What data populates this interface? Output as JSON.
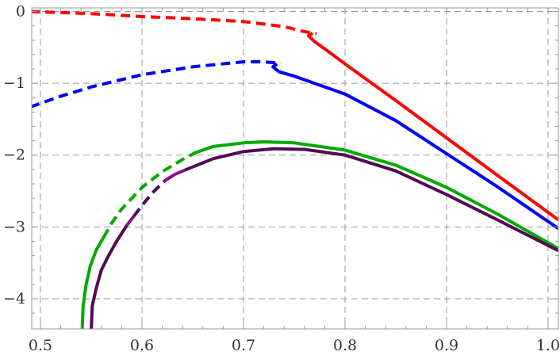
{
  "chart_data": {
    "type": "line",
    "title": "",
    "xlabel": "",
    "ylabel": "",
    "xlim": [
      0.4914,
      1.0102
    ],
    "ylim": [
      -4.42,
      0.05
    ],
    "grid": true,
    "grid_style": "dashed",
    "x_ticks": [
      "0.5",
      "0.6",
      "0.7",
      "0.8",
      "0.9",
      "1.0"
    ],
    "x_tick_values": [
      0.5,
      0.6,
      0.7,
      0.8,
      0.9,
      1.0
    ],
    "y_ticks": [
      "0",
      "−1",
      "−2",
      "−3",
      "−4"
    ],
    "y_tick_values": [
      0,
      -1,
      -2,
      -3,
      -4
    ],
    "series": [
      {
        "color": "#ff0000",
        "segments": [
          {
            "style": "dashed",
            "points": [
              [
                0.49,
                0
              ],
              [
                0.55,
                -0.03
              ],
              [
                0.6,
                -0.07
              ],
              [
                0.65,
                -0.1
              ],
              [
                0.7,
                -0.14
              ],
              [
                0.74,
                -0.21
              ],
              [
                0.76,
                -0.28
              ],
              [
                0.772,
                -0.31
              ]
            ]
          },
          {
            "style": "solid",
            "points": [
              [
                0.768,
                -0.3
              ],
              [
                0.764,
                -0.34
              ],
              [
                0.77,
                -0.42
              ],
              [
                0.78,
                -0.52
              ],
              [
                0.8,
                -0.73
              ],
              [
                0.85,
                -1.24
              ],
              [
                0.9,
                -1.76
              ],
              [
                0.95,
                -2.28
              ],
              [
                1.01,
                -2.9
              ]
            ]
          }
        ]
      },
      {
        "color": "#0000ff",
        "segments": [
          {
            "style": "dashed",
            "points": [
              [
                0.49,
                -1.33
              ],
              [
                0.52,
                -1.18
              ],
              [
                0.55,
                -1.05
              ],
              [
                0.6,
                -0.88
              ],
              [
                0.65,
                -0.77
              ],
              [
                0.7,
                -0.7
              ],
              [
                0.72,
                -0.7
              ],
              [
                0.737,
                -0.72
              ]
            ]
          },
          {
            "style": "solid",
            "points": [
              [
                0.733,
                -0.73
              ],
              [
                0.729,
                -0.77
              ],
              [
                0.735,
                -0.84
              ],
              [
                0.75,
                -0.9
              ],
              [
                0.8,
                -1.15
              ],
              [
                0.85,
                -1.52
              ],
              [
                0.9,
                -1.98
              ],
              [
                0.95,
                -2.44
              ],
              [
                1.01,
                -3.02
              ]
            ]
          }
        ]
      },
      {
        "color": "#00aa00",
        "segments": [
          {
            "style": "solid",
            "points": [
              [
                0.541,
                -4.45
              ],
              [
                0.542,
                -4.1
              ],
              [
                0.545,
                -3.8
              ],
              [
                0.549,
                -3.55
              ],
              [
                0.555,
                -3.32
              ],
              [
                0.562,
                -3.15
              ]
            ]
          },
          {
            "style": "dashed",
            "points": [
              [
                0.562,
                -3.15
              ],
              [
                0.57,
                -2.95
              ],
              [
                0.58,
                -2.75
              ],
              [
                0.6,
                -2.45
              ],
              [
                0.62,
                -2.23
              ],
              [
                0.64,
                -2.06
              ],
              [
                0.655,
                -1.95
              ]
            ]
          },
          {
            "style": "solid",
            "points": [
              [
                0.65,
                -1.98
              ],
              [
                0.67,
                -1.88
              ],
              [
                0.7,
                -1.83
              ],
              [
                0.72,
                -1.815
              ],
              [
                0.75,
                -1.83
              ],
              [
                0.8,
                -1.93
              ],
              [
                0.85,
                -2.14
              ],
              [
                0.9,
                -2.45
              ],
              [
                0.95,
                -2.82
              ],
              [
                1.01,
                -3.3
              ]
            ]
          }
        ]
      },
      {
        "color": "#520a52",
        "segments": [
          {
            "style": "solid",
            "points": [
              [
                0.55,
                -4.45
              ],
              [
                0.551,
                -4.1
              ],
              [
                0.555,
                -3.85
              ],
              [
                0.56,
                -3.6
              ],
              [
                0.567,
                -3.4
              ],
              [
                0.575,
                -3.2
              ],
              [
                0.585,
                -2.98
              ]
            ]
          },
          {
            "style": "solid",
            "color": "#8a0a8a",
            "points": [
              [
                0.585,
                -2.98
              ],
              [
                0.592,
                -2.85
              ]
            ]
          },
          {
            "style": "dashed",
            "points": [
              [
                0.592,
                -2.85
              ],
              [
                0.6,
                -2.7
              ],
              [
                0.61,
                -2.53
              ],
              [
                0.622,
                -2.36
              ]
            ]
          },
          {
            "style": "solid",
            "color": "#8a0a8a",
            "points": [
              [
                0.622,
                -2.36
              ],
              [
                0.632,
                -2.27
              ],
              [
                0.642,
                -2.21
              ]
            ]
          },
          {
            "style": "solid",
            "points": [
              [
                0.642,
                -2.21
              ],
              [
                0.67,
                -2.05
              ],
              [
                0.7,
                -1.95
              ],
              [
                0.73,
                -1.91
              ],
              [
                0.76,
                -1.92
              ],
              [
                0.8,
                -2.0
              ],
              [
                0.85,
                -2.22
              ],
              [
                0.9,
                -2.55
              ],
              [
                0.95,
                -2.9
              ],
              [
                1.01,
                -3.33
              ]
            ]
          }
        ]
      }
    ]
  }
}
